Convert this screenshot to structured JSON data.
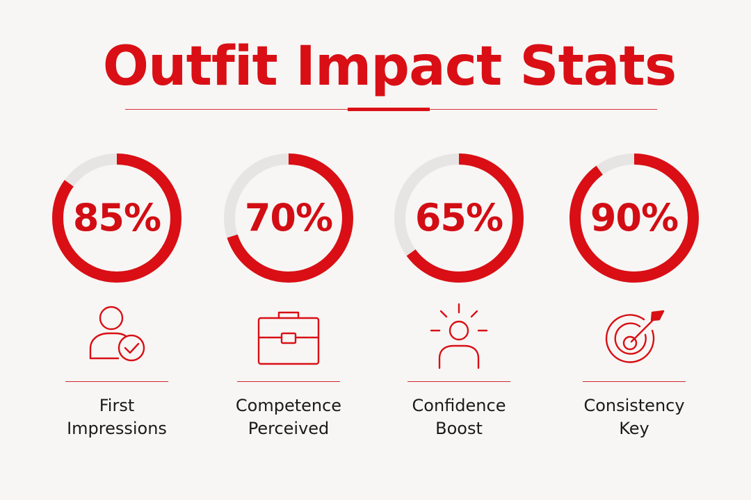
{
  "title": "Outfit Impact Stats",
  "colors": {
    "accent": "#d90f15",
    "track": "#e6e5e3",
    "text": "#1a1a1a",
    "background": "#f7f6f4"
  },
  "stats": [
    {
      "value": "85%",
      "fraction": 0.85,
      "label_line1": "First",
      "label_line2": "Impressions",
      "icon": "person-check-icon"
    },
    {
      "value": "70%",
      "fraction": 0.7,
      "label_line1": "Competence",
      "label_line2": "Perceived",
      "icon": "briefcase-icon"
    },
    {
      "value": "65%",
      "fraction": 0.65,
      "label_line1": "Confidence",
      "label_line2": "Boost",
      "icon": "glowing-person-icon"
    },
    {
      "value": "90%",
      "fraction": 0.9,
      "label_line1": "Consistency",
      "label_line2": "Key",
      "icon": "target-arrow-icon"
    }
  ]
}
